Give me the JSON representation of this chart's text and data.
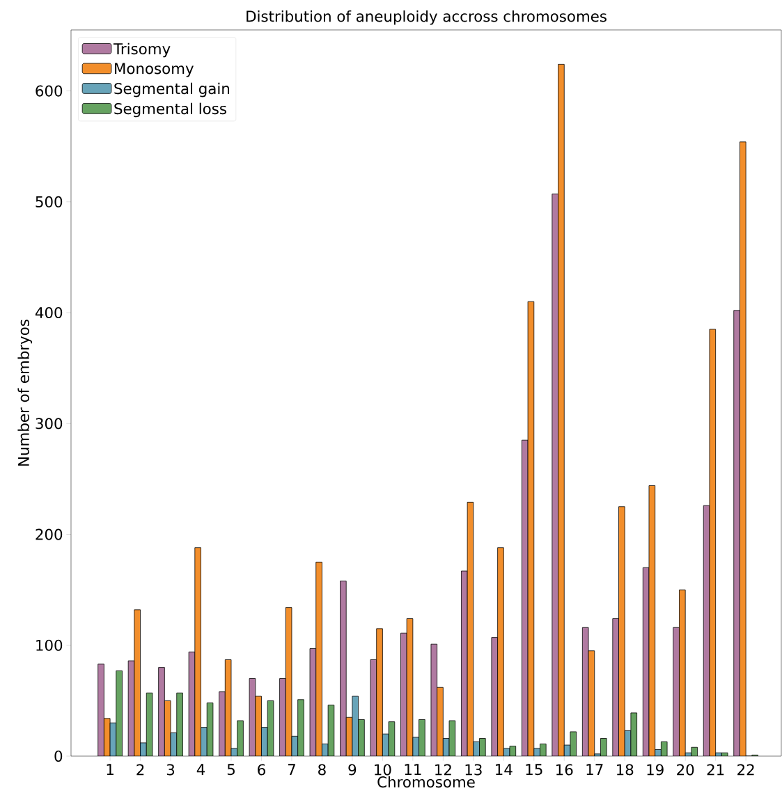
{
  "chart_data": {
    "type": "bar",
    "title": "Distribution of aneuploidy accross chromosomes",
    "xlabel": "Chromosome",
    "ylabel": "Number of embryos",
    "categories": [
      "1",
      "2",
      "3",
      "4",
      "5",
      "6",
      "7",
      "8",
      "9",
      "10",
      "11",
      "12",
      "13",
      "14",
      "15",
      "16",
      "17",
      "18",
      "19",
      "20",
      "21",
      "22"
    ],
    "series": [
      {
        "name": "Trisomy",
        "color": "#b07aa1",
        "values": [
          83,
          86,
          80,
          94,
          58,
          70,
          70,
          97,
          158,
          87,
          111,
          101,
          167,
          107,
          285,
          507,
          116,
          124,
          170,
          116,
          226,
          402
        ]
      },
      {
        "name": "Monosomy",
        "color": "#f28e2b",
        "values": [
          34,
          132,
          50,
          188,
          87,
          54,
          134,
          175,
          35,
          115,
          124,
          62,
          229,
          188,
          410,
          624,
          95,
          225,
          244,
          150,
          385,
          554
        ]
      },
      {
        "name": "Segmental gain",
        "color": "#68a4b9",
        "values": [
          30,
          12,
          21,
          26,
          7,
          26,
          18,
          11,
          54,
          20,
          17,
          16,
          13,
          7,
          7,
          10,
          2,
          23,
          6,
          3,
          3,
          0
        ]
      },
      {
        "name": "Segmental loss",
        "color": "#66a361",
        "values": [
          77,
          57,
          57,
          48,
          32,
          50,
          51,
          46,
          33,
          31,
          33,
          32,
          16,
          9,
          11,
          22,
          16,
          39,
          13,
          8,
          3,
          1
        ]
      }
    ],
    "ylim": [
      0,
      655
    ],
    "yticks": [
      0,
      100,
      200,
      300,
      400,
      500,
      600
    ],
    "legend": "top left"
  }
}
